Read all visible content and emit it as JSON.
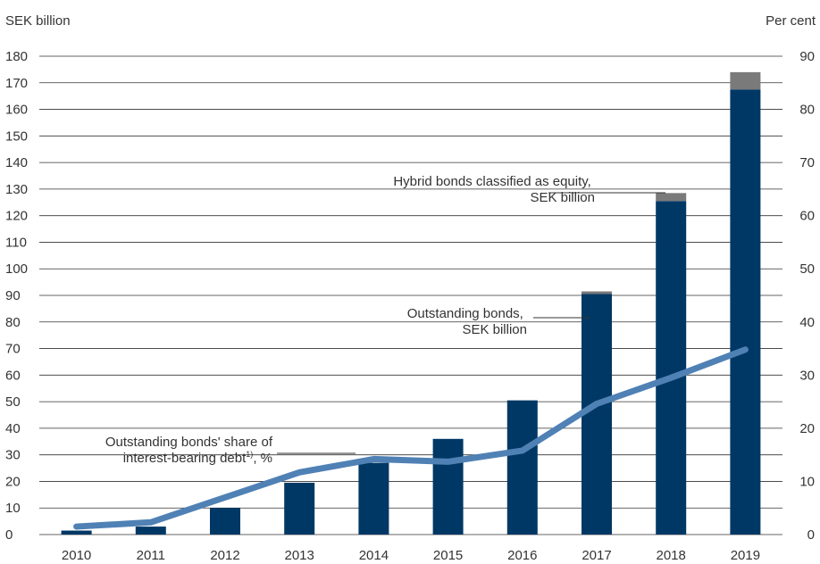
{
  "chart_data": {
    "type": "bar",
    "y_left_label": "SEK billion",
    "y_right_label": "Per cent",
    "y_left_range": [
      0,
      180
    ],
    "y_left_ticks": [
      0,
      10,
      20,
      30,
      40,
      50,
      60,
      70,
      80,
      90,
      100,
      110,
      120,
      130,
      140,
      150,
      160,
      170,
      180
    ],
    "y_right_range": [
      0,
      90
    ],
    "y_right_ticks": [
      0,
      10,
      20,
      30,
      40,
      50,
      60,
      70,
      80,
      90
    ],
    "grid": true,
    "categories": [
      "2010",
      "2011",
      "2012",
      "2013",
      "2014",
      "2015",
      "2016",
      "2017",
      "2018",
      "2019"
    ],
    "series": [
      {
        "kind": "bar-stacked",
        "axis": "left",
        "color": "#003865",
        "values": [
          1.5,
          3,
          10,
          19.5,
          27,
          36,
          50.5,
          90.5,
          125.5,
          167.5
        ]
      },
      {
        "kind": "bar-stacked",
        "axis": "left",
        "color": "#7a7a7a",
        "values": [
          0,
          0,
          0,
          0,
          0,
          0,
          0,
          1,
          3,
          6.5
        ]
      },
      {
        "kind": "line",
        "axis": "right",
        "color": "#4f81b5",
        "values": [
          1.5,
          2.3,
          7,
          11.7,
          14.2,
          13.7,
          15.8,
          24.6,
          29.5,
          34.8
        ]
      }
    ],
    "annotations": [
      {
        "lines": [
          "Hybrid bonds classified as equity,",
          "SEK billion"
        ]
      },
      {
        "lines": [
          "Outstanding bonds,",
          "SEK billion"
        ]
      },
      {
        "lines": [
          "Outstanding bonds' share of",
          "interest-bearing debt",
          "1)",
          ", %"
        ]
      }
    ]
  }
}
